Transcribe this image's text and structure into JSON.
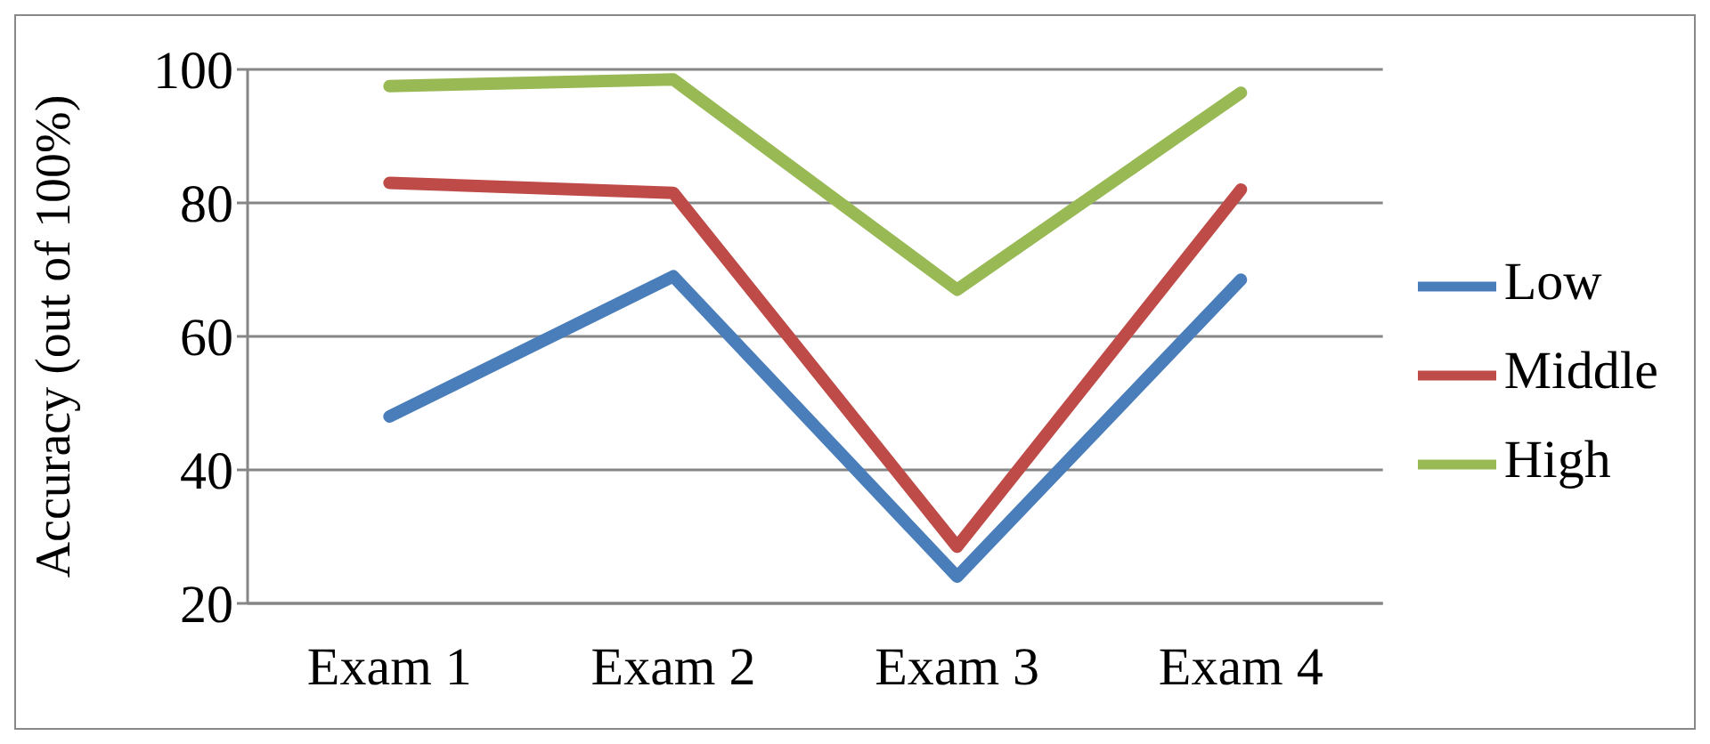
{
  "chart_data": {
    "type": "line",
    "ylabel": "Accuracy (out of 100%)",
    "categories": [
      "Exam 1",
      "Exam 2",
      "Exam 3",
      "Exam 4"
    ],
    "series": [
      {
        "name": "Low",
        "color": "#4a7ebb",
        "values": [
          48,
          69,
          24,
          68.5
        ]
      },
      {
        "name": "Middle",
        "color": "#be4b48",
        "values": [
          83,
          81.5,
          28.5,
          82
        ]
      },
      {
        "name": "High",
        "color": "#98b954",
        "values": [
          97.5,
          98.5,
          67,
          96.5
        ]
      }
    ],
    "ylim": [
      20,
      100
    ],
    "yticks": [
      20,
      40,
      60,
      80,
      100
    ],
    "grid": "y",
    "legend": "right",
    "marker": "none",
    "line_style": "solid"
  }
}
